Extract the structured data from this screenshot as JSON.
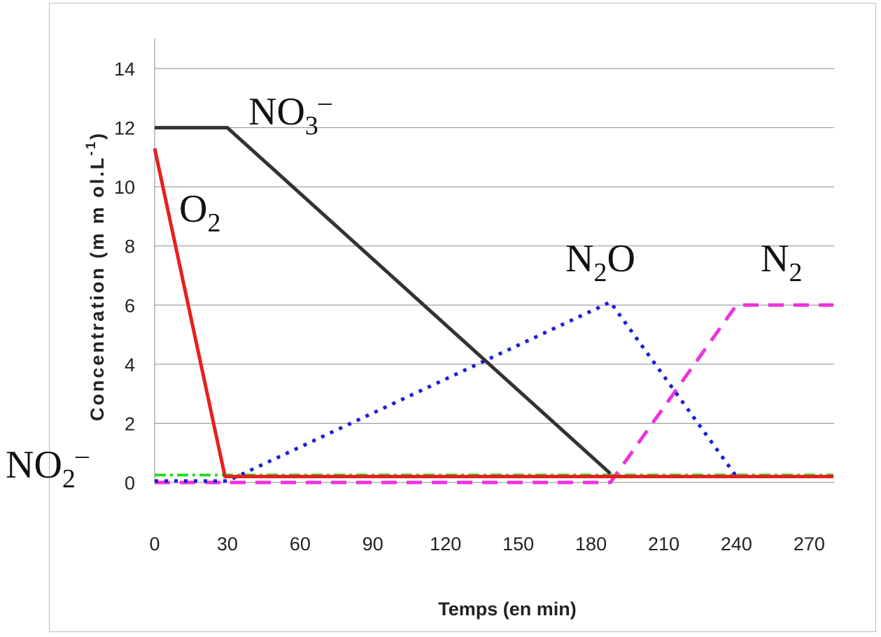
{
  "chart_data": {
    "type": "line",
    "xlabel": "Temps (en min)",
    "ylabel": "Concentration (m m ol.L-1)",
    "ylabel_parts": {
      "main": "Concentration (m m ol.L",
      "exp": "-1",
      "close": ")"
    },
    "xlim": [
      0,
      280
    ],
    "ylim": [
      0,
      15
    ],
    "x_ticks": [
      0,
      30,
      60,
      90,
      120,
      150,
      180,
      210,
      240,
      270
    ],
    "y_ticks": [
      0,
      2,
      4,
      6,
      8,
      10,
      12,
      14
    ],
    "grid": true,
    "series": [
      {
        "name": "NO3-",
        "label_base": "NO",
        "label_sub": "3",
        "label_sup": "–",
        "color": "#333333",
        "style": "solid",
        "points": [
          [
            0,
            12
          ],
          [
            30,
            12
          ],
          [
            188,
            0.3
          ]
        ]
      },
      {
        "name": "O2",
        "label_base": "O",
        "label_sub": "2",
        "label_sup": "",
        "color": "#e8201e",
        "style": "solid",
        "points": [
          [
            0,
            11.3
          ],
          [
            29,
            0.2
          ],
          [
            280,
            0.2
          ]
        ]
      },
      {
        "name": "N2O",
        "label_base": "N",
        "label_sub": "2",
        "label_after": "O",
        "label_sup": "",
        "color": "#1a1adb",
        "style": "dotted",
        "points": [
          [
            0,
            0.05
          ],
          [
            30,
            0.05
          ],
          [
            188,
            6.1
          ],
          [
            240,
            0.2
          ],
          [
            280,
            0.2
          ]
        ]
      },
      {
        "name": "N2",
        "label_base": "N",
        "label_sub": "2",
        "label_sup": "",
        "color": "#ee33dd",
        "style": "dashed",
        "points": [
          [
            0,
            0.0
          ],
          [
            188,
            0.0
          ],
          [
            240,
            6.0
          ],
          [
            280,
            6.0
          ]
        ]
      },
      {
        "name": "NO2-",
        "label_base": "NO",
        "label_sub": "2",
        "label_sup": "–",
        "color": "#22dd22",
        "style": "dashdot",
        "points": [
          [
            0,
            0.25
          ],
          [
            280,
            0.25
          ]
        ]
      }
    ]
  }
}
